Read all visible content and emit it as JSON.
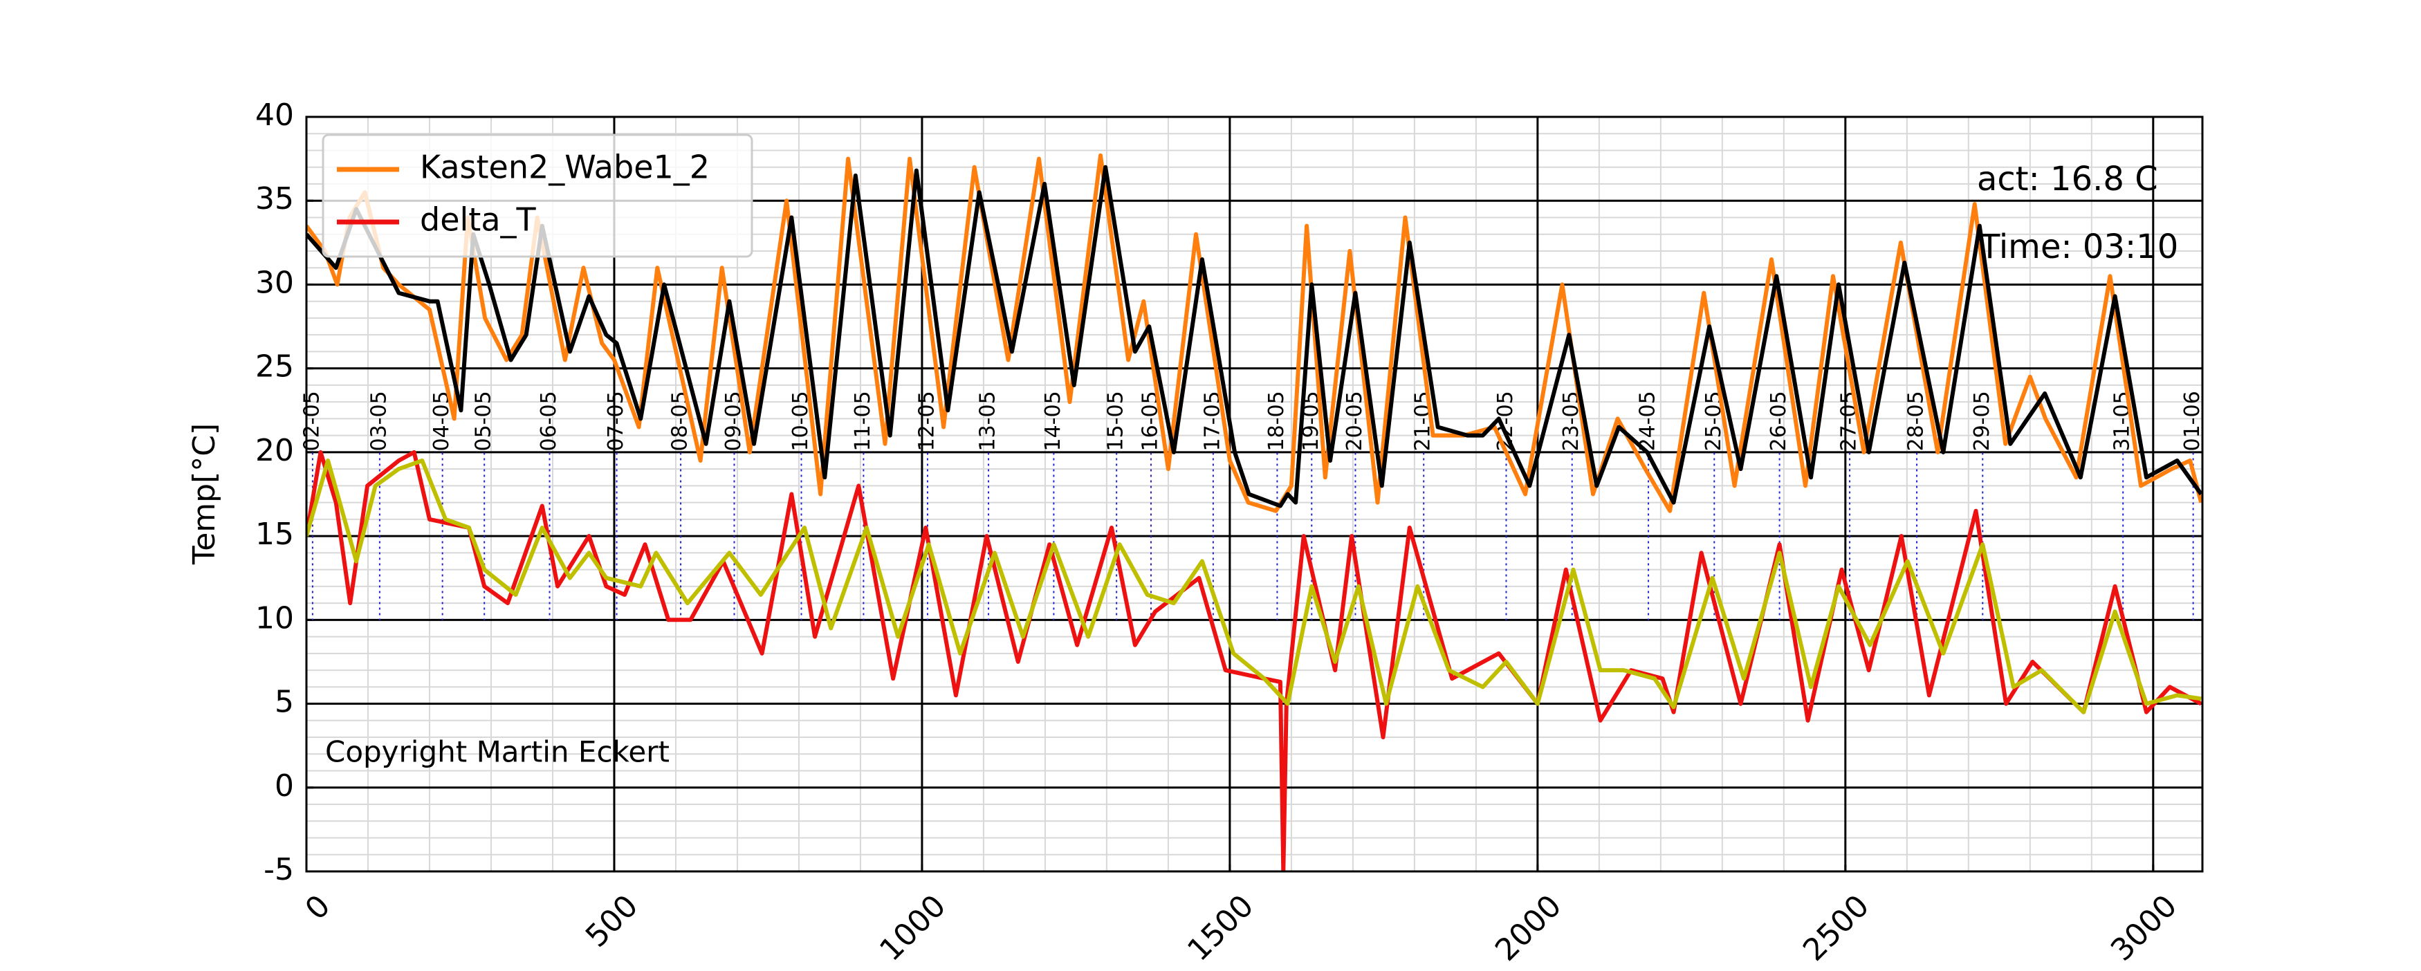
{
  "chart_data": {
    "type": "line",
    "ylabel": "Temp[°C]",
    "xlim": [
      0,
      3080
    ],
    "ylim": [
      -5,
      40
    ],
    "xticks": [
      0,
      500,
      1000,
      1500,
      2000,
      2500,
      3000
    ],
    "yticks": [
      -5,
      0,
      5,
      10,
      15,
      20,
      25,
      30,
      35,
      40
    ],
    "grid": true,
    "minor_grid": true,
    "legend": "upper left",
    "annotations": [
      "act: 16.8 C",
      "Time: 03:10",
      "Copyright Martin Eckert"
    ],
    "date_markers": {
      "x": [
        10,
        119,
        221,
        289,
        395,
        504,
        608,
        695,
        804,
        905,
        1009,
        1108,
        1214,
        1316,
        1372,
        1473,
        1577,
        1633,
        1704,
        1815,
        1949,
        2056,
        2180,
        2287,
        2393,
        2507,
        2616,
        2723,
        2951,
        3065
      ],
      "labels": [
        "02-05",
        "03-05",
        "04-05",
        "05-05",
        "06-05",
        "07-05",
        "08-05",
        "09-05",
        "10-05",
        "11-05",
        "12-05",
        "13-05",
        "14-05",
        "15-05",
        "16-05",
        "17-05",
        "18-05",
        "19-05",
        "20-05",
        "21-05",
        "22-05",
        "23-05",
        "24-05",
        "25-05",
        "26-05",
        "27-05",
        "28-05",
        "29-05",
        "31-05",
        "01-06"
      ],
      "color": "#2222cc"
    },
    "series": [
      {
        "name": "Kasten2_Wabe1_2",
        "color": "#ff7f0e",
        "x": [
          0,
          30,
          50,
          70,
          95,
          125,
          150,
          200,
          240,
          262,
          290,
          325,
          350,
          375,
          420,
          450,
          480,
          500,
          540,
          570,
          640,
          675,
          720,
          780,
          835,
          880,
          940,
          980,
          1035,
          1085,
          1140,
          1190,
          1240,
          1290,
          1335,
          1360,
          1400,
          1445,
          1500,
          1530,
          1575,
          1600,
          1625,
          1655,
          1695,
          1740,
          1785,
          1830,
          1880,
          1930,
          1980,
          2040,
          2090,
          2130,
          2175,
          2215,
          2270,
          2320,
          2380,
          2435,
          2480,
          2530,
          2590,
          2650,
          2710,
          2760,
          2800,
          2825,
          2875,
          2930,
          2980,
          3030,
          3060,
          3078
        ],
        "values": [
          33.5,
          32,
          30,
          34,
          35.5,
          31,
          30,
          28.5,
          22,
          34,
          28,
          25.5,
          27,
          34,
          25.5,
          31,
          26.5,
          25.5,
          21.5,
          31,
          19.5,
          31,
          20,
          35,
          17.5,
          37.5,
          20.5,
          37.5,
          21.5,
          37,
          25.5,
          37.5,
          23,
          37.7,
          25.5,
          29,
          19,
          33,
          19.5,
          17,
          16.5,
          18,
          33.5,
          18.5,
          32,
          17,
          34,
          21,
          21,
          21.5,
          17.5,
          30,
          17.5,
          22,
          19,
          16.5,
          29.5,
          18,
          31.5,
          18,
          30.5,
          20,
          32.5,
          20,
          34.8,
          20.5,
          24.5,
          22,
          18.5,
          30.5,
          18,
          19,
          19.5,
          17
        ]
      },
      {
        "color": "#000000",
        "x": [
          0,
          48,
          81,
          150,
          200,
          213,
          251,
          271,
          297,
          332,
          357,
          383,
          428,
          459,
          487,
          504,
          543,
          581,
          649,
          687,
          727,
          788,
          842,
          892,
          948,
          991,
          1042,
          1093,
          1146,
          1199,
          1247,
          1298,
          1346,
          1369,
          1409,
          1455,
          1508,
          1531,
          1582,
          1594,
          1607,
          1633,
          1663,
          1704,
          1747,
          1792,
          1838,
          1886,
          1911,
          1937,
          1987,
          2051,
          2096,
          2132,
          2178,
          2221,
          2279,
          2330,
          2388,
          2444,
          2489,
          2538,
          2596,
          2659,
          2718,
          2768,
          2824,
          2882,
          2938,
          2989,
          3039,
          3078
        ],
        "values": [
          33,
          31,
          34.5,
          29.5,
          29,
          29,
          22.5,
          33,
          30,
          25.5,
          27,
          33.5,
          26,
          29.3,
          27,
          26.5,
          22,
          30,
          20.5,
          29,
          20.5,
          34,
          18.5,
          36.5,
          21,
          36.8,
          22.5,
          35.5,
          26,
          36,
          24,
          37,
          26,
          27.5,
          20,
          31.5,
          20,
          17.5,
          16.8,
          17.5,
          17,
          30,
          19.5,
          29.5,
          18,
          32.5,
          21.5,
          21,
          21,
          22,
          18,
          27,
          18,
          21.5,
          20,
          17,
          27.5,
          19,
          30.5,
          18.5,
          30,
          20,
          31.3,
          20,
          33.5,
          20.5,
          23.5,
          18.5,
          29.3,
          18.5,
          19.5,
          17.5
        ]
      },
      {
        "name": "delta_T",
        "color": "#ee1111",
        "x": [
          0,
          23,
          48,
          71,
          99,
          150,
          175,
          200,
          264,
          289,
          327,
          383,
          408,
          459,
          487,
          517,
          550,
          588,
          624,
          677,
          740,
          788,
          826,
          897,
          953,
          1006,
          1055,
          1105,
          1156,
          1207,
          1252,
          1308,
          1346,
          1379,
          1450,
          1493,
          1556,
          1582,
          1587,
          1592,
          1620,
          1671,
          1698,
          1749,
          1792,
          1861,
          1937,
          2000,
          2046,
          2102,
          2152,
          2203,
          2221,
          2266,
          2330,
          2393,
          2439,
          2494,
          2538,
          2591,
          2636,
          2712,
          2761,
          2804,
          2887,
          2938,
          2989,
          3027,
          3078
        ],
        "values": [
          15,
          20,
          17,
          11,
          18,
          19.5,
          20,
          16,
          15.5,
          12,
          11,
          16.8,
          12,
          15,
          12,
          11.5,
          14.5,
          10,
          10,
          13.5,
          8,
          17.5,
          9,
          18,
          6.5,
          15.5,
          5.5,
          15,
          7.5,
          14.5,
          8.5,
          15.5,
          8.5,
          10.5,
          12.5,
          7,
          6.5,
          6.3,
          -5,
          5,
          15,
          7,
          15,
          3,
          15.5,
          6.5,
          8,
          5,
          13,
          4,
          7,
          6.5,
          4.5,
          14,
          5,
          14.5,
          4,
          13,
          7,
          15,
          5.5,
          16.5,
          5,
          7.5,
          4.5,
          12,
          4.5,
          6,
          5
        ]
      },
      {
        "color": "#bfbf00",
        "x": [
          0,
          35,
          81,
          112,
          150,
          188,
          226,
          264,
          289,
          340,
          383,
          428,
          459,
          487,
          543,
          568,
          619,
          687,
          738,
          809,
          852,
          910,
          961,
          1011,
          1062,
          1118,
          1164,
          1214,
          1270,
          1321,
          1366,
          1409,
          1455,
          1506,
          1556,
          1594,
          1633,
          1671,
          1709,
          1754,
          1805,
          1856,
          1911,
          1949,
          2000,
          2058,
          2102,
          2140,
          2190,
          2221,
          2284,
          2335,
          2393,
          2444,
          2489,
          2540,
          2601,
          2659,
          2723,
          2773,
          2819,
          2887,
          2938,
          2989,
          3039,
          3078
        ],
        "values": [
          15,
          19.5,
          13.5,
          18,
          19,
          19.5,
          16,
          15.5,
          13,
          11.5,
          15.5,
          12.5,
          14,
          12.5,
          12,
          14,
          11,
          14,
          11.5,
          15.5,
          9.5,
          15.5,
          9,
          14.5,
          8,
          14,
          9,
          14.5,
          9,
          14.5,
          11.5,
          11,
          13.5,
          8,
          6.5,
          5,
          12,
          7.5,
          12,
          5,
          12,
          7,
          6,
          7.5,
          5,
          13,
          7,
          7,
          6.5,
          4.8,
          12.5,
          6.5,
          14,
          6,
          12,
          8.5,
          13.5,
          8,
          14.5,
          6,
          7,
          4.5,
          10.5,
          5,
          5.5,
          5.3
        ]
      }
    ]
  }
}
